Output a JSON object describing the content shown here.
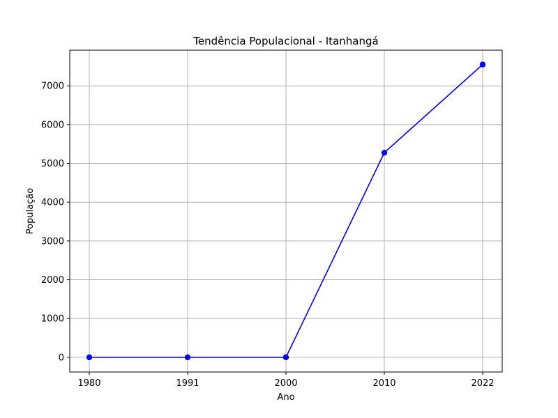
{
  "chart_data": {
    "type": "line",
    "title": "Tendência Populacional - Itanhangá",
    "xlabel": "Ano",
    "ylabel": "População",
    "categories": [
      "1980",
      "1991",
      "2000",
      "2010",
      "2022"
    ],
    "series": [
      {
        "values": [
          0,
          0,
          0,
          5276,
          7550
        ]
      }
    ],
    "yticks": [
      0,
      1000,
      2000,
      3000,
      4000,
      5000,
      6000,
      7000
    ],
    "ylim": [
      -380,
      7920
    ],
    "grid": true,
    "colors": {
      "line": "#0000ff",
      "marker": "#0000ff",
      "grid": "#b0b0b0",
      "axes": "#000000"
    }
  }
}
